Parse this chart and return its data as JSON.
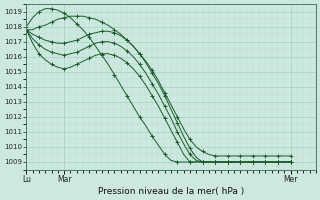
{
  "title": "Pression niveau de la mer( hPa )",
  "bg_color": "#cce8e0",
  "grid_color_major": "#99ccbb",
  "grid_color_minor": "#bbddcc",
  "line_color": "#1a5c2a",
  "ylim": [
    1008.5,
    1019.5
  ],
  "yticks": [
    1009,
    1010,
    1011,
    1012,
    1013,
    1014,
    1015,
    1016,
    1017,
    1018,
    1019
  ],
  "xtick_labels": [
    "Lu",
    "Mar",
    "Mer"
  ],
  "xtick_positions": [
    0,
    6,
    42
  ],
  "xlim": [
    0,
    46
  ],
  "series": [
    [
      1017.8,
      1017.8,
      1018.0,
      1018.1,
      1018.3,
      1018.5,
      1018.6,
      1018.7,
      1018.7,
      1018.7,
      1018.6,
      1018.5,
      1018.3,
      1018.1,
      1017.8,
      1017.5,
      1017.1,
      1016.7,
      1016.2,
      1015.7,
      1015.1,
      1014.4,
      1013.6,
      1012.8,
      1012.0,
      1011.2,
      1010.5,
      1010.0,
      1009.7,
      1009.5,
      1009.4,
      1009.4,
      1009.4,
      1009.4,
      1009.4,
      1009.4,
      1009.4,
      1009.4,
      1009.4,
      1009.4,
      1009.4,
      1009.4,
      1009.4
    ],
    [
      1017.8,
      1017.5,
      1017.3,
      1017.1,
      1017.0,
      1016.9,
      1016.9,
      1017.0,
      1017.1,
      1017.3,
      1017.5,
      1017.6,
      1017.7,
      1017.7,
      1017.6,
      1017.4,
      1017.1,
      1016.7,
      1016.2,
      1015.6,
      1014.9,
      1014.2,
      1013.4,
      1012.5,
      1011.6,
      1010.7,
      1009.9,
      1009.3,
      1009.0,
      1009.0,
      1009.0,
      1009.0,
      1009.0,
      1009.0,
      1009.0,
      1009.0,
      1009.0,
      1009.0,
      1009.0,
      1009.0,
      1009.0,
      1009.0,
      1009.0
    ],
    [
      1017.8,
      1017.2,
      1016.8,
      1016.5,
      1016.3,
      1016.2,
      1016.1,
      1016.2,
      1016.3,
      1016.5,
      1016.7,
      1016.9,
      1017.0,
      1017.0,
      1016.9,
      1016.7,
      1016.4,
      1016.0,
      1015.5,
      1014.9,
      1014.2,
      1013.5,
      1012.7,
      1011.9,
      1011.0,
      1010.2,
      1009.5,
      1009.1,
      1009.0,
      1009.0,
      1009.0,
      1009.0,
      1009.0,
      1009.0,
      1009.0,
      1009.0,
      1009.0,
      1009.0,
      1009.0,
      1009.0,
      1009.0,
      1009.0,
      1009.0
    ],
    [
      1017.8,
      1016.9,
      1016.2,
      1015.8,
      1015.5,
      1015.3,
      1015.2,
      1015.3,
      1015.5,
      1015.7,
      1015.9,
      1016.1,
      1016.2,
      1016.2,
      1016.1,
      1015.9,
      1015.6,
      1015.2,
      1014.7,
      1014.1,
      1013.4,
      1012.7,
      1011.9,
      1011.1,
      1010.3,
      1009.5,
      1009.0,
      1009.0,
      1009.0,
      1009.0,
      1009.0,
      1009.0,
      1009.0,
      1009.0,
      1009.0,
      1009.0,
      1009.0,
      1009.0,
      1009.0,
      1009.0,
      1009.0,
      1009.0,
      1009.0
    ],
    [
      1018.0,
      1018.6,
      1019.0,
      1019.2,
      1019.2,
      1019.1,
      1018.9,
      1018.6,
      1018.2,
      1017.8,
      1017.3,
      1016.7,
      1016.1,
      1015.5,
      1014.8,
      1014.1,
      1013.4,
      1012.7,
      1012.0,
      1011.4,
      1010.7,
      1010.1,
      1009.5,
      1009.1,
      1009.0,
      1009.0,
      1009.0,
      1009.0,
      1009.0,
      1009.0,
      1009.0,
      1009.0,
      1009.0,
      1009.0,
      1009.0,
      1009.0,
      1009.0,
      1009.0,
      1009.0,
      1009.0,
      1009.0,
      1009.0,
      1009.0
    ]
  ]
}
